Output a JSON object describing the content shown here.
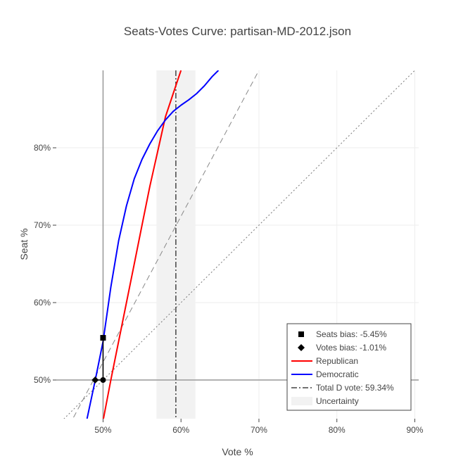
{
  "chart_data": {
    "type": "line",
    "title": "Seats-Votes Curve: partisan-MD-2012.json",
    "xlabel": "Vote %",
    "ylabel": "Seat %",
    "xlim": [
      0.44,
      0.905
    ],
    "ylim": [
      0.45,
      0.9
    ],
    "x_ticks": [
      {
        "value": 0.5,
        "label": "50%"
      },
      {
        "value": 0.6,
        "label": "60%"
      },
      {
        "value": 0.7,
        "label": "70%"
      },
      {
        "value": 0.8,
        "label": "80%"
      },
      {
        "value": 0.9,
        "label": "90%"
      }
    ],
    "y_ticks": [
      {
        "value": 0.5,
        "label": "50%"
      },
      {
        "value": 0.6,
        "label": "60%"
      },
      {
        "value": 0.7,
        "label": "70%"
      },
      {
        "value": 0.8,
        "label": "80%"
      }
    ],
    "grid": true,
    "legend_position": "bottom-right",
    "uncertainty_band": {
      "x0": 0.5685,
      "x1": 0.6185,
      "color": "#f2f2f2"
    },
    "total_d_vote": 0.5934,
    "series": [
      {
        "name": "Republican",
        "color": "#ff0000",
        "x": [
          0.5005,
          0.51,
          0.52,
          0.53,
          0.54,
          0.55,
          0.56,
          0.57,
          0.58,
          0.59,
          0.6
        ],
        "y": [
          0.45,
          0.5,
          0.55,
          0.6,
          0.65,
          0.7,
          0.75,
          0.795,
          0.84,
          0.87,
          0.9
        ]
      },
      {
        "name": "Democratic",
        "color": "#0000ff",
        "x": [
          0.4795,
          0.49,
          0.5,
          0.51,
          0.52,
          0.53,
          0.54,
          0.55,
          0.56,
          0.57,
          0.58,
          0.59,
          0.6,
          0.61,
          0.62,
          0.63,
          0.64,
          0.648
        ],
        "y": [
          0.45,
          0.5,
          0.55,
          0.62,
          0.68,
          0.725,
          0.76,
          0.785,
          0.805,
          0.822,
          0.836,
          0.847,
          0.855,
          0.862,
          0.87,
          0.88,
          0.892,
          0.9
        ]
      }
    ],
    "markers": [
      {
        "name": "Seats bias: -5.45%",
        "symbol": "square",
        "points": [
          {
            "x": 0.5,
            "y": 0.5545
          }
        ]
      },
      {
        "name": "Votes bias: -1.01%",
        "symbol": "diamond",
        "points": [
          {
            "x": 0.4899,
            "y": 0.5
          }
        ]
      }
    ],
    "center_point": {
      "x": 0.5,
      "y": 0.5
    },
    "reference_lines": [
      {
        "kind": "dashed",
        "color": "#888888",
        "x": [
          0.44,
          0.7
        ],
        "y": [
          0.41,
          0.9
        ]
      },
      {
        "kind": "dotted",
        "color": "#777777",
        "x": [
          0.44,
          0.9
        ],
        "y": [
          0.44,
          0.9
        ]
      }
    ],
    "legend": [
      {
        "label": "Seats bias: -5.45%",
        "symbol": "square",
        "color": "#000000"
      },
      {
        "label": "Votes bias: -1.01%",
        "symbol": "diamond",
        "color": "#000000"
      },
      {
        "label": "Republican",
        "symbol": "line",
        "color": "#ff0000"
      },
      {
        "label": "Democratic",
        "symbol": "line",
        "color": "#0000ff"
      },
      {
        "label": "Total D vote: 59.34%",
        "symbol": "dashdot",
        "color": "#444444"
      },
      {
        "label": "Uncertainty",
        "symbol": "band",
        "color": "#f2f2f2"
      }
    ]
  }
}
